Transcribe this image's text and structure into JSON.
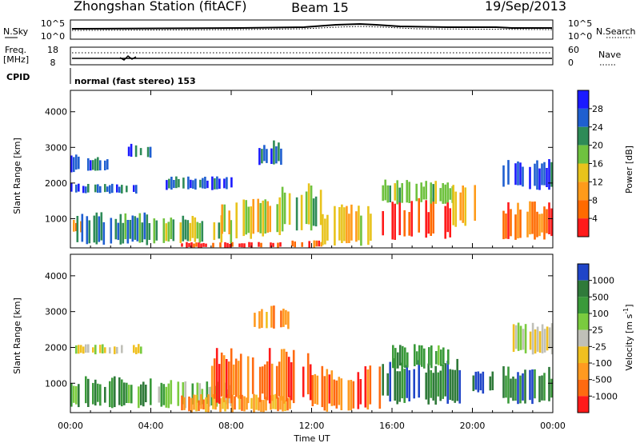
{
  "header": {
    "station": "Zhongshan Station (fitACF)",
    "beam": "Beam 15",
    "date": "19/Sep/2013"
  },
  "noise_panel": {
    "left_label": "N.Sky",
    "left_top_tick": "10^5",
    "left_bottom_tick": "10^0",
    "right_top_tick": "10^5",
    "right_bottom_tick": "10^0",
    "right_label": "N.Search"
  },
  "freq_panel": {
    "left_label_line1": "Freq.",
    "left_label_line2": "[MHz]",
    "left_top_tick": "18",
    "left_bottom_tick": "8",
    "right_top_tick": "60",
    "right_bottom_tick": "0",
    "right_label": "Nave"
  },
  "cpid_panel": {
    "label": "CPID",
    "text": "normal (fast stereo) 153"
  },
  "chart_data": [
    {
      "type": "heatmap",
      "title": "",
      "xlabel": "",
      "ylabel": "Slant Range [km]",
      "x_ticks": [
        "00:00",
        "04:00",
        "08:00",
        "12:00",
        "16:00",
        "20:00",
        "00:00"
      ],
      "y_ticks": [
        "1000",
        "2000",
        "3000",
        "4000"
      ],
      "xlim_hours": [
        0,
        24
      ],
      "ylim_km": [
        180,
        4600
      ],
      "colorbar": {
        "label": "Power [dB]",
        "ticks": [
          "4",
          "8",
          "12",
          "16",
          "20",
          "24",
          "28"
        ],
        "colors": [
          "#1a1aff",
          "#1f5fd0",
          "#2e8b57",
          "#6fc23f",
          "#e8c31c",
          "#ff9b1a",
          "#ff6a00",
          "#ff1a1a"
        ]
      },
      "echo_regions": [
        {
          "t0": 0.0,
          "t1": 0.6,
          "r0": 600,
          "r1": 1000,
          "level": 6
        },
        {
          "t0": 0.0,
          "t1": 3.5,
          "r0": 1700,
          "r1": 2000,
          "level": 1
        },
        {
          "t0": 0.0,
          "t1": 2.0,
          "r0": 2300,
          "r1": 2800,
          "level": 1
        },
        {
          "t0": 0.3,
          "t1": 4.0,
          "r0": 250,
          "r1": 1200,
          "level": 2
        },
        {
          "t0": 2.5,
          "t1": 4.0,
          "r0": 2700,
          "r1": 3100,
          "level": 1
        },
        {
          "t0": 4.0,
          "t1": 8.0,
          "r0": 300,
          "r1": 1100,
          "level": 3
        },
        {
          "t0": 5.5,
          "t1": 10.5,
          "r0": 180,
          "r1": 350,
          "level": 7
        },
        {
          "t0": 4.5,
          "t1": 8.0,
          "r0": 1800,
          "r1": 2200,
          "level": 1
        },
        {
          "t0": 7.5,
          "t1": 10.5,
          "r0": 400,
          "r1": 1600,
          "level": 4
        },
        {
          "t0": 9.0,
          "t1": 10.5,
          "r0": 2500,
          "r1": 3200,
          "level": 1
        },
        {
          "t0": 10.5,
          "t1": 12.5,
          "r0": 600,
          "r1": 2000,
          "level": 3
        },
        {
          "t0": 11.0,
          "t1": 12.5,
          "r0": 180,
          "r1": 400,
          "level": 6
        },
        {
          "t0": 12.5,
          "t1": 15.0,
          "r0": 200,
          "r1": 1400,
          "level": 4
        },
        {
          "t0": 15.5,
          "t1": 19.0,
          "r0": 400,
          "r1": 1600,
          "level": 7
        },
        {
          "t0": 15.5,
          "t1": 19.0,
          "r0": 1400,
          "r1": 2100,
          "level": 3
        },
        {
          "t0": 19.0,
          "t1": 20.5,
          "r0": 700,
          "r1": 2000,
          "level": 4
        },
        {
          "t0": 21.5,
          "t1": 24.0,
          "r0": 400,
          "r1": 1500,
          "level": 6
        },
        {
          "t0": 21.5,
          "t1": 24.0,
          "r0": 1800,
          "r1": 2700,
          "level": 1
        }
      ]
    },
    {
      "type": "heatmap",
      "title": "",
      "xlabel": "Time UT",
      "ylabel": "Slant Range [km]",
      "x_ticks": [
        "00:00",
        "04:00",
        "08:00",
        "12:00",
        "16:00",
        "20:00",
        "00:00"
      ],
      "y_ticks": [
        "1000",
        "2000",
        "3000",
        "4000"
      ],
      "xlim_hours": [
        0,
        24
      ],
      "ylim_km": [
        180,
        4600
      ],
      "colorbar": {
        "label": "Velocity [m s^-1]",
        "ticks": [
          "1000",
          "500",
          "100",
          "25",
          "-25",
          "-100",
          "-500",
          "-1000"
        ],
        "colors": [
          "#2045c8",
          "#2f7a3a",
          "#3a9a3a",
          "#7acb3f",
          "#c0c0b8",
          "#f0c020",
          "#ff9a20",
          "#ff6a10",
          "#ff1a1a"
        ]
      },
      "echo_regions": [
        {
          "t0": 0.0,
          "t1": 3.5,
          "r0": 1800,
          "r1": 2100,
          "level": 4
        },
        {
          "t0": 0.0,
          "t1": 4.0,
          "r0": 300,
          "r1": 1200,
          "level": 2
        },
        {
          "t0": 4.0,
          "t1": 8.0,
          "r0": 300,
          "r1": 1100,
          "level": 3
        },
        {
          "t0": 5.5,
          "t1": 11.0,
          "r0": 180,
          "r1": 700,
          "level": 6
        },
        {
          "t0": 7.0,
          "t1": 12.0,
          "r0": 400,
          "r1": 2000,
          "level": 7
        },
        {
          "t0": 9.0,
          "t1": 11.0,
          "r0": 2500,
          "r1": 3200,
          "level": 6
        },
        {
          "t0": 12.0,
          "t1": 15.5,
          "r0": 200,
          "r1": 1500,
          "level": 7
        },
        {
          "t0": 15.5,
          "t1": 19.5,
          "r0": 400,
          "r1": 1700,
          "level": 1
        },
        {
          "t0": 16.0,
          "t1": 19.0,
          "r0": 1400,
          "r1": 2100,
          "level": 2
        },
        {
          "t0": 20.0,
          "t1": 21.0,
          "r0": 700,
          "r1": 1400,
          "level": 0
        },
        {
          "t0": 21.5,
          "t1": 24.0,
          "r0": 400,
          "r1": 1500,
          "level": 1
        },
        {
          "t0": 22.0,
          "t1": 24.0,
          "r0": 1800,
          "r1": 2700,
          "level": 4
        }
      ]
    }
  ]
}
